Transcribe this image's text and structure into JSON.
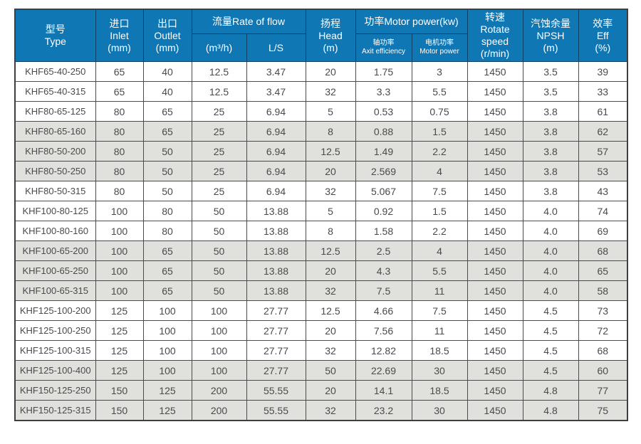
{
  "chart_data": {
    "type": "table",
    "header": {
      "type": "型号\nType",
      "inlet": "进口\nInlet\n(mm)",
      "outlet": "出口\nOutlet\n(mm)",
      "flow_group": "流量Rate of flow",
      "flow_m3h": "(m³/h)",
      "flow_ls": "L/S",
      "head": "扬程\nHead\n(m)",
      "power_group": "功率Motor power(kw)",
      "power_shaft": "轴功率\nAxit efficiency",
      "power_motor": "电机功率\nMotor power",
      "rotate_speed": "转速\nRotate speed\n(r/min)",
      "npsh": "汽蚀余量\nNPSH\n(m)",
      "eff": "效率\nEff\n(%)"
    },
    "columns": [
      "Type",
      "Inlet (mm)",
      "Outlet (mm)",
      "Rate of flow (m³/h)",
      "Rate of flow L/S",
      "Head (m)",
      "Axit efficiency (kw)",
      "Motor power (kw)",
      "Rotate speed (r/min)",
      "NPSH (m)",
      "Eff (%)"
    ],
    "rows": [
      [
        "KHF65-40-250",
        "65",
        "40",
        "12.5",
        "3.47",
        "20",
        "1.75",
        "3",
        "1450",
        "3.5",
        "39"
      ],
      [
        "KHF65-40-315",
        "65",
        "40",
        "12.5",
        "3.47",
        "32",
        "3.3",
        "5.5",
        "1450",
        "3.5",
        "33"
      ],
      [
        "KHF80-65-125",
        "80",
        "65",
        "25",
        "6.94",
        "5",
        "0.53",
        "0.75",
        "1450",
        "3.8",
        "61"
      ],
      [
        "KHF80-65-160",
        "80",
        "65",
        "25",
        "6.94",
        "8",
        "0.88",
        "1.5",
        "1450",
        "3.8",
        "62"
      ],
      [
        "KHF80-50-200",
        "80",
        "50",
        "25",
        "6.94",
        "12.5",
        "1.49",
        "2.2",
        "1450",
        "3.8",
        "57"
      ],
      [
        "KHF80-50-250",
        "80",
        "50",
        "25",
        "6.94",
        "20",
        "2.569",
        "4",
        "1450",
        "3.8",
        "53"
      ],
      [
        "KHF80-50-315",
        "80",
        "50",
        "25",
        "6.94",
        "32",
        "5.067",
        "7.5",
        "1450",
        "3.8",
        "43"
      ],
      [
        "KHF100-80-125",
        "100",
        "80",
        "50",
        "13.88",
        "5",
        "0.92",
        "1.5",
        "1450",
        "4.0",
        "74"
      ],
      [
        "KHF100-80-160",
        "100",
        "80",
        "50",
        "13.88",
        "8",
        "1.58",
        "2.2",
        "1450",
        "4.0",
        "69"
      ],
      [
        "KHF100-65-200",
        "100",
        "65",
        "50",
        "13.88",
        "12.5",
        "2.5",
        "4",
        "1450",
        "4.0",
        "68"
      ],
      [
        "KHF100-65-250",
        "100",
        "65",
        "50",
        "13.88",
        "20",
        "4.3",
        "5.5",
        "1450",
        "4.0",
        "65"
      ],
      [
        "KHF100-65-315",
        "100",
        "65",
        "50",
        "13.88",
        "32",
        "7.5",
        "11",
        "1450",
        "4.0",
        "58"
      ],
      [
        "KHF125-100-200",
        "125",
        "100",
        "100",
        "27.77",
        "12.5",
        "4.66",
        "7.5",
        "1450",
        "4.5",
        "73"
      ],
      [
        "KHF125-100-250",
        "125",
        "100",
        "100",
        "27.77",
        "20",
        "7.56",
        "11",
        "1450",
        "4.5",
        "72"
      ],
      [
        "KHF125-100-315",
        "125",
        "100",
        "100",
        "27.77",
        "32",
        "12.82",
        "18.5",
        "1450",
        "4.5",
        "68"
      ],
      [
        "KHF125-100-400",
        "125",
        "100",
        "100",
        "27.77",
        "50",
        "22.69",
        "30",
        "1450",
        "4.5",
        "60"
      ],
      [
        "KHF150-125-250",
        "150",
        "125",
        "200",
        "55.55",
        "20",
        "14.1",
        "18.5",
        "1450",
        "4.8",
        "77"
      ],
      [
        "KHF150-125-315",
        "150",
        "125",
        "200",
        "55.55",
        "32",
        "23.2",
        "30",
        "1450",
        "4.8",
        "75"
      ]
    ]
  },
  "colors": {
    "header_bg": "#0f77b4",
    "header_border": "#0a3f66",
    "body_border": "#4b4b4b",
    "row_shade": "#e0e0dc",
    "body_text": "#4a4a4a"
  }
}
